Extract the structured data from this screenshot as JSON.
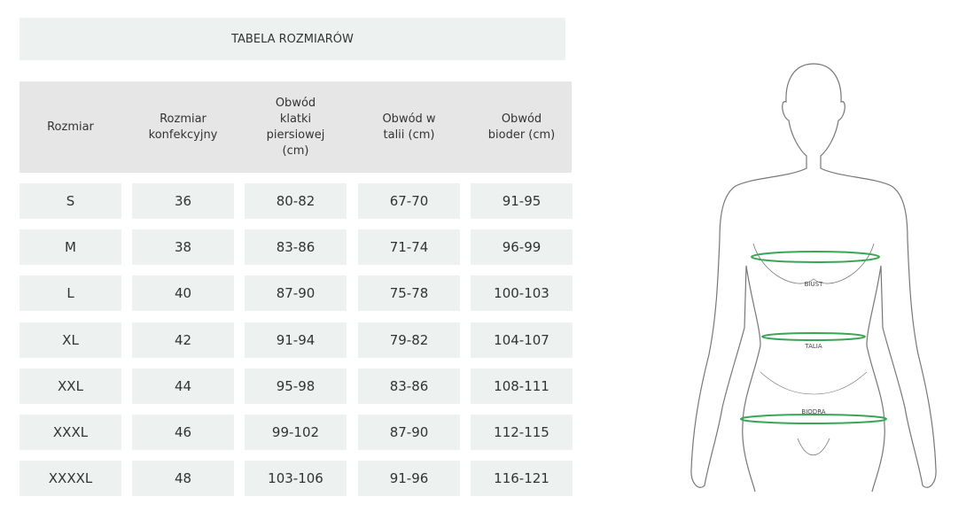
{
  "header": {
    "title": "TABELA ROZMIARÓW"
  },
  "table": {
    "columns": [
      "Rozmiar",
      "Rozmiar konfekcyjny",
      "Obwód klatki piersiowej (cm)",
      "Obwód w talii (cm)",
      "Obwód bioder (cm)"
    ],
    "rows": [
      [
        "S",
        "36",
        "80-82",
        "67-70",
        "91-95"
      ],
      [
        "M",
        "38",
        "83-86",
        "71-74",
        "96-99"
      ],
      [
        "L",
        "40",
        "87-90",
        "75-78",
        "100-103"
      ],
      [
        "XL",
        "42",
        "91-94",
        "79-82",
        "104-107"
      ],
      [
        "XXL",
        "44",
        "95-98",
        "83-86",
        "108-111"
      ],
      [
        "XXXL",
        "46",
        "99-102",
        "87-90",
        "112-115"
      ],
      [
        "XXXXL",
        "48",
        "103-106",
        "91-96",
        "116-121"
      ]
    ]
  },
  "figure": {
    "labels": [
      "BIUST",
      "TALIA",
      "BIODRA"
    ]
  }
}
